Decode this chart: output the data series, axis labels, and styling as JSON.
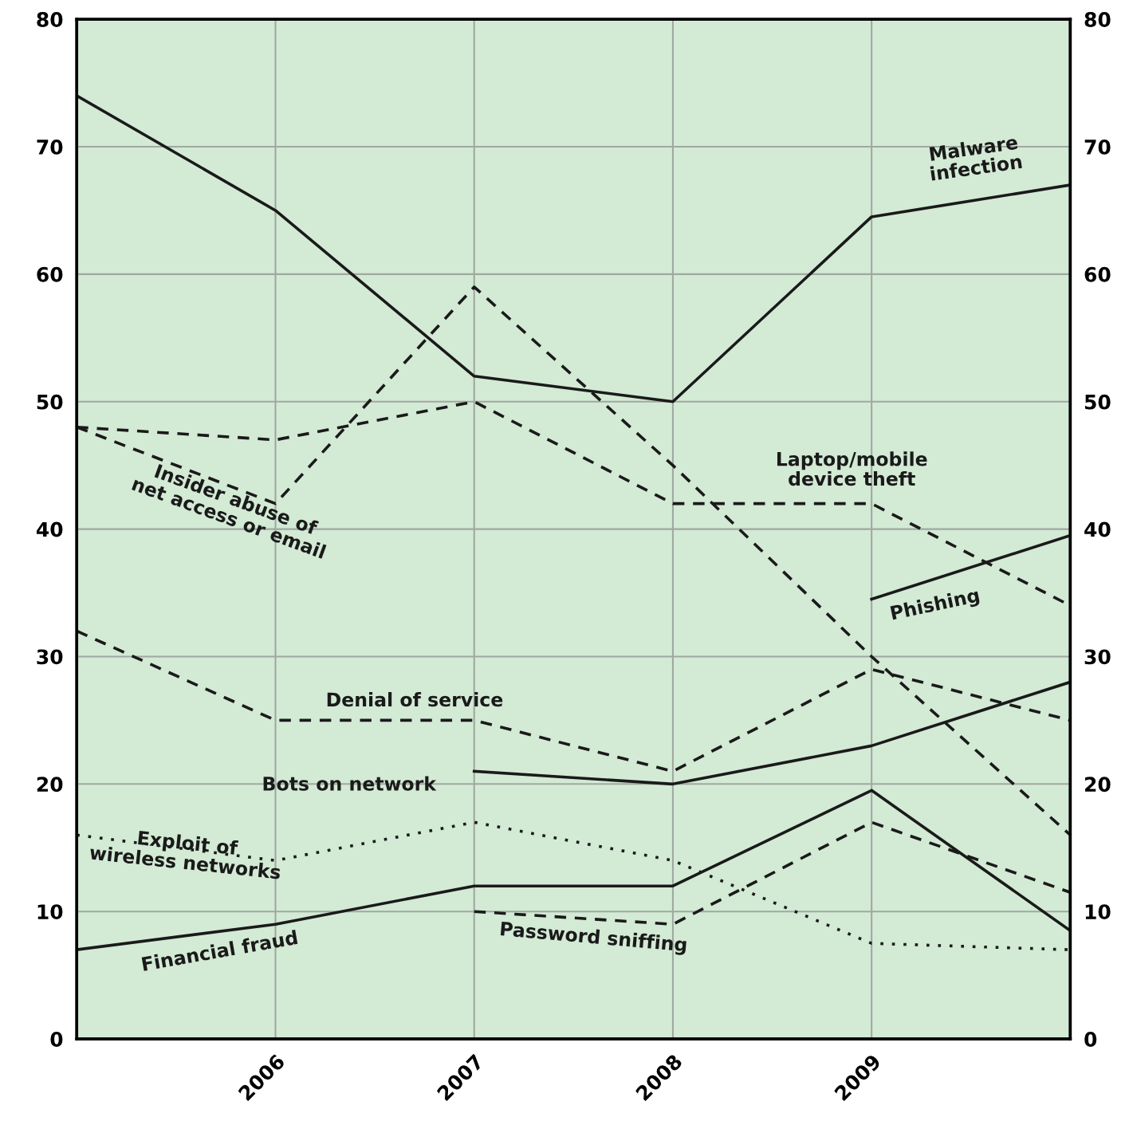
{
  "chart_data": {
    "type": "line",
    "x": [
      2005,
      2006,
      2007,
      2008,
      2009,
      2010
    ],
    "series": [
      {
        "name": "Malware\ninfection",
        "color": "#1a1a1a",
        "line_style": "solid",
        "values": [
          74,
          65,
          52,
          50,
          64.5,
          67
        ]
      },
      {
        "name": "Laptop/mobile\ndevice theft",
        "color": "#1a1a1a",
        "line_style": "dashed",
        "values": [
          48,
          47,
          50,
          42,
          42,
          34
        ]
      },
      {
        "name": "Insider abuse of\nnet access or email",
        "color": "#1a1a1a",
        "line_style": "dashed",
        "values": [
          48,
          42,
          59,
          45,
          30,
          16
        ]
      },
      {
        "name": "Phishing",
        "color": "#1a1a1a",
        "line_style": "solid",
        "values": [
          null,
          null,
          null,
          null,
          34.5,
          39.5
        ]
      },
      {
        "name": "Denial of service",
        "color": "#1a1a1a",
        "line_style": "dashed",
        "values": [
          32,
          25,
          25,
          21,
          29,
          25
        ]
      },
      {
        "name": "Bots on network",
        "color": "#1a1a1a",
        "line_style": "solid",
        "values": [
          null,
          null,
          21,
          20,
          23,
          28
        ]
      },
      {
        "name": "Exploit of\nwireless networks",
        "color": "#1a1a1a",
        "line_style": "dotted",
        "values": [
          16,
          14,
          17,
          14,
          7.5,
          7
        ]
      },
      {
        "name": "Financial fraud",
        "color": "#1a1a1a",
        "line_style": "solid",
        "values": [
          7,
          9,
          12,
          12,
          19.5,
          8.5
        ]
      },
      {
        "name": "Password sniffing",
        "color": "#1a1a1a",
        "line_style": "dashed",
        "values": [
          null,
          null,
          10,
          9,
          17,
          11.5
        ]
      }
    ],
    "xlim": [
      2005,
      2010
    ],
    "xticks": [
      2006,
      2007,
      2008,
      2009
    ],
    "ylim": [
      0,
      80
    ],
    "yticks": [
      0,
      10,
      20,
      30,
      40,
      50,
      60,
      70,
      80
    ],
    "y2lim": [
      0,
      80
    ],
    "y2ticks": [
      0,
      10,
      20,
      30,
      40,
      50,
      60,
      70,
      80
    ],
    "grid": true,
    "legend": false,
    "marker": "none"
  }
}
